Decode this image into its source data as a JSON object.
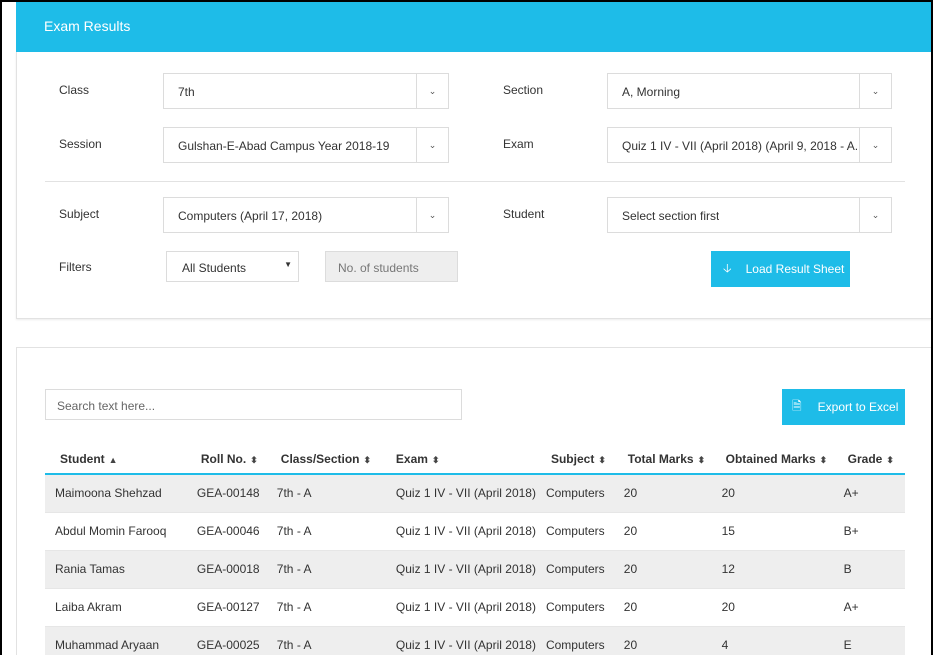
{
  "header": {
    "title": "Exam Results"
  },
  "filters": {
    "class": {
      "label": "Class",
      "value": "7th"
    },
    "section": {
      "label": "Section",
      "value": "A, Morning"
    },
    "session": {
      "label": "Session",
      "value": "Gulshan-E-Abad Campus Year 2018-19"
    },
    "exam": {
      "label": "Exam",
      "value": "Quiz 1 IV - VII (April 2018) (April 9, 2018 - A..."
    },
    "subject": {
      "label": "Subject",
      "value": "Computers (April 17, 2018)"
    },
    "student": {
      "label": "Student",
      "value": "Select section first"
    },
    "filters_label": "Filters",
    "student_filter": "All Students",
    "count_placeholder": "No. of students",
    "load_button": "Load Result Sheet"
  },
  "results": {
    "search_placeholder": "Search text here...",
    "export_button": "Export to Excel",
    "columns": [
      "Student",
      "Roll No.",
      "Class/Section",
      "Exam",
      "Subject",
      "Total Marks",
      "Obtained Marks",
      "Grade"
    ],
    "rows": [
      [
        "Maimoona Shehzad",
        "GEA-00148",
        "7th - A",
        "Quiz 1 IV - VII (April 2018)",
        "Computers",
        "20",
        "20",
        "A+"
      ],
      [
        "Abdul Momin Farooq",
        "GEA-00046",
        "7th - A",
        "Quiz 1 IV - VII (April 2018)",
        "Computers",
        "20",
        "15",
        "B+"
      ],
      [
        "Rania Tamas",
        "GEA-00018",
        "7th - A",
        "Quiz 1 IV - VII (April 2018)",
        "Computers",
        "20",
        "12",
        "B"
      ],
      [
        "Laiba Akram",
        "GEA-00127",
        "7th - A",
        "Quiz 1 IV - VII (April 2018)",
        "Computers",
        "20",
        "20",
        "A+"
      ],
      [
        "Muhammad Aryaan",
        "GEA-00025",
        "7th - A",
        "Quiz 1 IV - VII (April 2018)",
        "Computers",
        "20",
        "4",
        "E"
      ]
    ]
  },
  "colors": {
    "accent": "#1ebce8",
    "row_stripe": "#eeeeee"
  },
  "icons": {
    "select_arrow": "chevron-down-icon",
    "load": "arrow-down-icon",
    "export": "file-icon",
    "sort": "sort-icon"
  }
}
